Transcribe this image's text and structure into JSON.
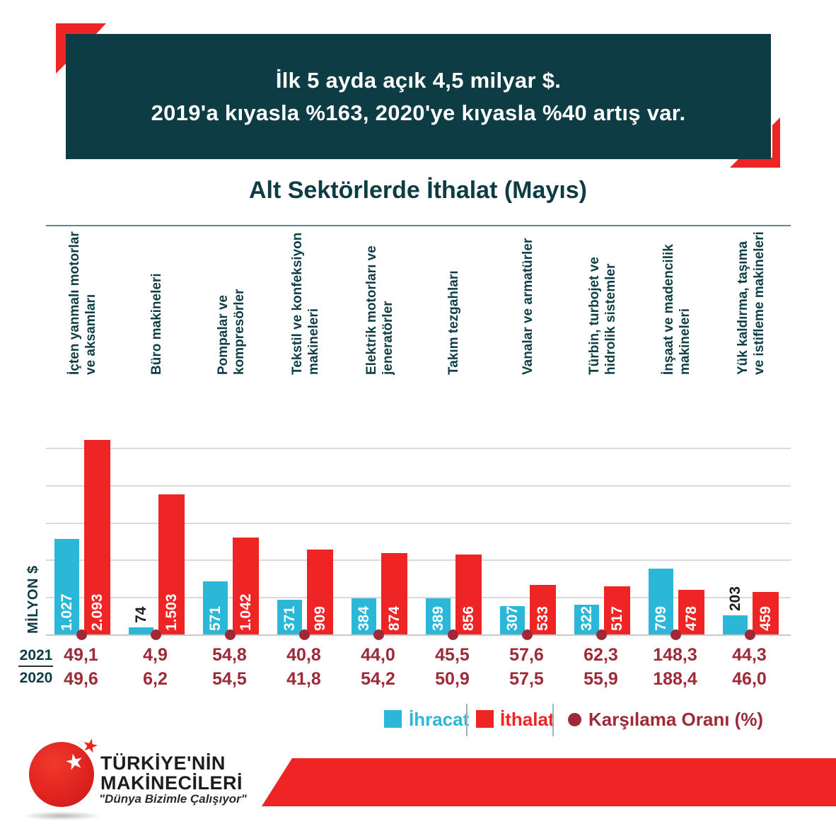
{
  "banner": {
    "line1": "İlk 5 ayda açık 4,5 milyar $.",
    "line2": "2019'a kıyasla %163, 2020'ye kıyasla %40 artış var."
  },
  "title": "Alt Sektörlerde İthalat (Mayıs)",
  "ylabel": "MİLYON $",
  "ratio_table": {
    "row1_header": "2021",
    "row2_header": "2020"
  },
  "legend": {
    "items": [
      {
        "label": "İhracat",
        "color": "#2bb8d8",
        "marker": "square"
      },
      {
        "label": "İthalat",
        "color": "#ee2524",
        "marker": "square"
      },
      {
        "label": "Karşılama Oranı (%)",
        "color": "#9e2a38",
        "marker": "dot"
      }
    ]
  },
  "logo": {
    "name_line1": "TÜRKİYE'NİN",
    "name_line2": "MAKİNECİLERİ",
    "tagline": "\"Dünya Bizimle Çalışıyor\"",
    "star_icon": "★"
  },
  "colors": {
    "teal": "#0d3c44",
    "cyan": "#2bb8d8",
    "red": "#ee2524",
    "burgundy": "#9e2a38",
    "grid": "#dadada"
  },
  "chart_data": {
    "type": "bar",
    "title": "Alt Sektörlerde İthalat (Mayıs)",
    "ylabel": "MİLYON $",
    "unit": "milyon $",
    "ylim": [
      0,
      2200
    ],
    "grid_step": 400,
    "grid_on": true,
    "legend_position": "bottom",
    "categories": [
      "İçten yanmalı motorlar ve aksamları",
      "Büro makineleri",
      "Pompalar ve kompresörler",
      "Tekstil ve konfeksiyon makineleri",
      "Elektrik motorları ve jeneratörler",
      "Takım tezgahları",
      "Vanalar ve armatürler",
      "Türbin, turbojet ve hidrolik sistemler",
      "İnşaat ve madencilik makineleri",
      "Yük kaldırma, taşıma ve istifleme makineleri"
    ],
    "categories_lines": [
      [
        "İçten yanmalı motorlar",
        "ve aksamları"
      ],
      [
        "Büro makineleri"
      ],
      [
        "Pompalar ve",
        "kompresörler"
      ],
      [
        "Tekstil ve konfeksiyon",
        "makineleri"
      ],
      [
        "Elektrik motorları ve",
        "jeneratörler"
      ],
      [
        "Takım tezgahları"
      ],
      [
        "Vanalar ve armatürler"
      ],
      [
        "Türbin, turbojet ve",
        "hidrolik sistemler"
      ],
      [
        "İnşaat ve madencilik",
        "makineleri"
      ],
      [
        "Yük kaldırma, taşıma",
        "ve istifleme makineleri"
      ]
    ],
    "series": [
      {
        "name": "İhracat",
        "color": "#2bb8d8",
        "values": [
          1027,
          74,
          571,
          371,
          384,
          389,
          307,
          322,
          709,
          203
        ],
        "labels": [
          "1.027",
          "74",
          "571",
          "371",
          "384",
          "389",
          "307",
          "322",
          "709",
          "203"
        ],
        "label_outside": [
          false,
          true,
          false,
          false,
          false,
          false,
          false,
          false,
          false,
          true
        ]
      },
      {
        "name": "İthalat",
        "color": "#ee2524",
        "values": [
          2093,
          1503,
          1042,
          909,
          874,
          856,
          533,
          517,
          478,
          459
        ],
        "labels": [
          "2.093",
          "1.503",
          "1.042",
          "909",
          "874",
          "856",
          "533",
          "517",
          "478",
          "459"
        ],
        "label_outside": [
          false,
          false,
          false,
          false,
          false,
          false,
          false,
          false,
          false,
          false
        ]
      }
    ],
    "karsilama_orani": {
      "name": "Karşılama Oranı (%)",
      "color": "#9e2a38",
      "r2021": [
        49.1,
        4.9,
        54.8,
        40.8,
        44.0,
        45.5,
        57.6,
        62.3,
        148.3,
        44.3
      ],
      "r2020": [
        49.6,
        6.2,
        54.5,
        41.8,
        54.2,
        50.9,
        57.5,
        55.9,
        188.4,
        46.0
      ],
      "r2021_display": [
        "49,1",
        "4,9",
        "54,8",
        "40,8",
        "44,0",
        "45,5",
        "57,6",
        "62,3",
        "148,3",
        "44,3"
      ],
      "r2020_display": [
        "49,6",
        "6,2",
        "54,5",
        "41,8",
        "54,2",
        "50,9",
        "57,5",
        "55,9",
        "188,4",
        "46,0"
      ]
    }
  }
}
